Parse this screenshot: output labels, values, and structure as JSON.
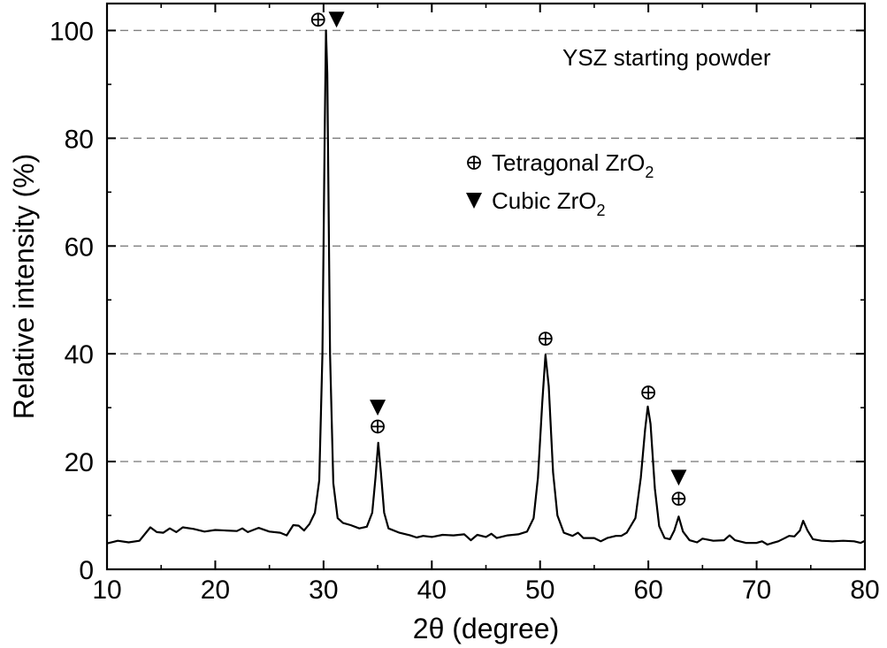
{
  "chart_data": {
    "type": "line",
    "title": "",
    "xlabel": "2θ (degree)",
    "ylabel": "Relative intensity (%)",
    "xlim": [
      10,
      80
    ],
    "ylim": [
      0,
      105
    ],
    "x_ticks": [
      10,
      20,
      30,
      40,
      50,
      60,
      70,
      80
    ],
    "y_ticks": [
      0,
      20,
      40,
      60,
      80,
      100
    ],
    "grid": "horizontal dashed at 20, 40, 60, 80, 100",
    "annotation": "YSZ starting powder",
    "legend": {
      "placement": "center-right",
      "entries": [
        {
          "symbol": "tetragonal-marker",
          "text": "Tetragonal ZrO",
          "sub": "2"
        },
        {
          "symbol": "cubic-marker",
          "text": "Cubic ZrO",
          "sub": "2"
        }
      ]
    },
    "series": [
      {
        "points": [
          [
            10,
            4.8
          ],
          [
            11,
            5.3
          ],
          [
            12,
            5.0
          ],
          [
            13,
            5.3
          ],
          [
            14,
            7.8
          ],
          [
            14.6,
            6.9
          ],
          [
            15.2,
            6.8
          ],
          [
            15.8,
            7.6
          ],
          [
            16.4,
            6.9
          ],
          [
            17,
            7.8
          ],
          [
            18,
            7.5
          ],
          [
            19,
            7.0
          ],
          [
            20,
            7.3
          ],
          [
            21,
            7.2
          ],
          [
            22,
            7.1
          ],
          [
            22.5,
            7.6
          ],
          [
            23,
            6.9
          ],
          [
            24,
            7.7
          ],
          [
            25,
            7.0
          ],
          [
            26,
            6.8
          ],
          [
            26.6,
            6.3
          ],
          [
            27.2,
            8.2
          ],
          [
            27.7,
            8.1
          ],
          [
            28.2,
            7.2
          ],
          [
            28.7,
            8.4
          ],
          [
            29.2,
            10.5
          ],
          [
            29.6,
            16.5
          ],
          [
            29.9,
            40
          ],
          [
            30.1,
            80
          ],
          [
            30.22,
            100
          ],
          [
            30.35,
            92
          ],
          [
            30.6,
            40
          ],
          [
            30.9,
            16
          ],
          [
            31.3,
            9.5
          ],
          [
            31.8,
            8.6
          ],
          [
            32.5,
            8.2
          ],
          [
            33.3,
            7.6
          ],
          [
            34,
            7.9
          ],
          [
            34.5,
            10.5
          ],
          [
            34.8,
            17
          ],
          [
            35.05,
            23.5
          ],
          [
            35.3,
            18
          ],
          [
            35.6,
            10.5
          ],
          [
            36,
            7.6
          ],
          [
            37,
            6.8
          ],
          [
            38,
            6.3
          ],
          [
            38.6,
            5.9
          ],
          [
            39.2,
            6.2
          ],
          [
            40,
            6.0
          ],
          [
            41,
            6.4
          ],
          [
            42,
            6.3
          ],
          [
            43,
            6.5
          ],
          [
            43.6,
            5.4
          ],
          [
            44.2,
            6.4
          ],
          [
            45,
            6.0
          ],
          [
            45.5,
            6.6
          ],
          [
            46,
            5.8
          ],
          [
            47,
            6.3
          ],
          [
            48,
            6.5
          ],
          [
            48.8,
            7.0
          ],
          [
            49.4,
            9.5
          ],
          [
            49.8,
            17
          ],
          [
            50.2,
            31
          ],
          [
            50.5,
            39.8
          ],
          [
            50.8,
            34
          ],
          [
            51.2,
            18
          ],
          [
            51.6,
            10
          ],
          [
            52.2,
            6.8
          ],
          [
            53,
            6.2
          ],
          [
            53.5,
            6.8
          ],
          [
            54,
            5.8
          ],
          [
            55,
            5.8
          ],
          [
            55.6,
            5.2
          ],
          [
            56.2,
            5.8
          ],
          [
            57,
            6.2
          ],
          [
            57.5,
            6.2
          ],
          [
            58,
            6.8
          ],
          [
            58.8,
            9.5
          ],
          [
            59.3,
            17
          ],
          [
            59.7,
            26
          ],
          [
            59.95,
            30.2
          ],
          [
            60.2,
            27
          ],
          [
            60.6,
            15
          ],
          [
            61,
            8
          ],
          [
            61.5,
            5.8
          ],
          [
            62,
            5.6
          ],
          [
            62.4,
            7.2
          ],
          [
            62.8,
            9.8
          ],
          [
            63.2,
            7.0
          ],
          [
            63.8,
            5.4
          ],
          [
            64.5,
            5.0
          ],
          [
            65,
            5.7
          ],
          [
            66,
            5.3
          ],
          [
            67,
            5.4
          ],
          [
            67.5,
            6.3
          ],
          [
            68,
            5.4
          ],
          [
            69,
            4.9
          ],
          [
            70,
            4.9
          ],
          [
            70.5,
            5.2
          ],
          [
            71,
            4.6
          ],
          [
            71.5,
            4.9
          ],
          [
            72,
            5.2
          ],
          [
            72.5,
            5.7
          ],
          [
            73,
            6.2
          ],
          [
            73.5,
            6.1
          ],
          [
            74,
            7.2
          ],
          [
            74.3,
            9.0
          ],
          [
            74.7,
            7.2
          ],
          [
            75.2,
            5.6
          ],
          [
            76,
            5.3
          ],
          [
            77,
            5.2
          ],
          [
            78,
            5.3
          ],
          [
            79,
            5.2
          ],
          [
            79.6,
            4.9
          ],
          [
            80,
            5.3
          ]
        ]
      }
    ],
    "peak_markers": [
      {
        "x": 29.5,
        "y": 102,
        "symbol": "tetragonal-marker"
      },
      {
        "x": 31.2,
        "y": 102,
        "symbol": "cubic-marker"
      },
      {
        "x": 35.0,
        "y": 26.5,
        "symbol": "tetragonal-marker"
      },
      {
        "x": 35.0,
        "y": 30.0,
        "symbol": "cubic-marker"
      },
      {
        "x": 50.5,
        "y": 42.8,
        "symbol": "tetragonal-marker"
      },
      {
        "x": 60.0,
        "y": 32.8,
        "symbol": "tetragonal-marker"
      },
      {
        "x": 62.8,
        "y": 13.1,
        "symbol": "tetragonal-marker"
      },
      {
        "x": 62.8,
        "y": 17.0,
        "symbol": "cubic-marker"
      }
    ]
  }
}
